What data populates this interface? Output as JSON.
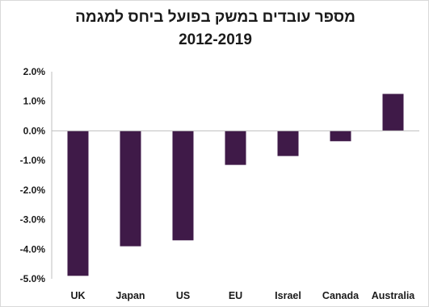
{
  "chart_data": {
    "type": "bar",
    "title": "מספר עובדים במשק בפועל ביחס למגמה",
    "subtitle": "2012-2019",
    "categories": [
      "UK",
      "Japan",
      "US",
      "EU",
      "Israel",
      "Canada",
      "Australia"
    ],
    "values": [
      -4.9,
      -3.9,
      -3.7,
      -1.15,
      -0.85,
      -0.35,
      1.25
    ],
    "ylim": [
      -5.0,
      2.0
    ],
    "yticks": [
      "2.0%",
      "1.0%",
      "0.0%",
      "-1.0%",
      "-2.0%",
      "-3.0%",
      "-4.0%",
      "-5.0%"
    ],
    "ytick_values": [
      2,
      1,
      0,
      -1,
      -2,
      -3,
      -4,
      -5
    ],
    "xlabel": "",
    "ylabel": "",
    "grid": false,
    "legend": "none",
    "bar_color": "#3f1a48"
  }
}
